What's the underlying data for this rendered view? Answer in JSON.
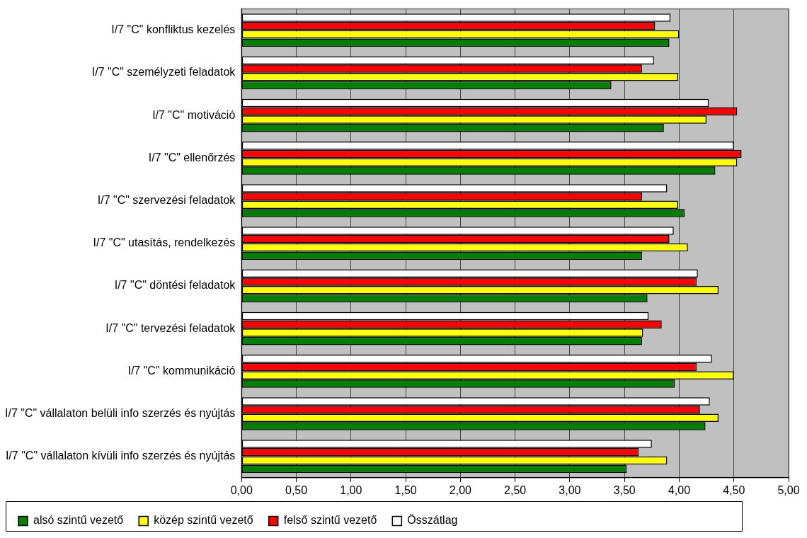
{
  "chart_data": {
    "type": "bar",
    "orientation": "horizontal",
    "categories": [
      "I/7 \"C\" konfliktus kezelés",
      "I/7 \"C\" személyzeti feladatok",
      "I/7 \"C\" motiváció",
      "I/7 \"C\" ellenőrzés",
      "I/7 \"C\" szervezési feladatok",
      "I/7 \"C\" utasítás, rendelkezés",
      "I/7 \"C\" döntési feladatok",
      "I/7 \"C\" tervezési feladatok",
      "I/7 \"C\" kommunikáció",
      "I/7 \"C\" vállalaton belüli info szerzés és nyújtás",
      "I/7 \"C\" vállalaton kívüli info szerzés és nyújtás"
    ],
    "series": [
      {
        "name": "alsó szintű vezető",
        "color": "#008000",
        "values": [
          3.91,
          3.38,
          3.86,
          4.33,
          4.05,
          3.66,
          3.71,
          3.66,
          3.96,
          4.24,
          3.52
        ]
      },
      {
        "name": "közép szintű vezető",
        "color": "#ffff00",
        "values": [
          4.0,
          3.99,
          4.25,
          4.53,
          3.99,
          4.08,
          4.36,
          3.67,
          4.5,
          4.36,
          3.89
        ]
      },
      {
        "name": "felső szintű vezető",
        "color": "#ff0000",
        "values": [
          3.78,
          3.66,
          4.53,
          4.57,
          3.66,
          3.91,
          4.16,
          3.84,
          4.16,
          4.19,
          3.63
        ]
      },
      {
        "name": "Összátlag",
        "color": "#ffffff",
        "values": [
          3.92,
          3.77,
          4.27,
          4.5,
          3.89,
          3.95,
          4.17,
          3.72,
          4.3,
          4.28,
          3.75
        ]
      }
    ],
    "xlim": [
      0,
      5
    ],
    "xticks": [
      {
        "value": 0,
        "label": "0,00"
      },
      {
        "value": 0.5,
        "label": "0,50"
      },
      {
        "value": 1,
        "label": "1,00"
      },
      {
        "value": 1.5,
        "label": "1,50"
      },
      {
        "value": 2,
        "label": "2,00"
      },
      {
        "value": 2.5,
        "label": "2,50"
      },
      {
        "value": 3,
        "label": "3,00"
      },
      {
        "value": 3.5,
        "label": "3,50"
      },
      {
        "value": 4,
        "label": "4,00"
      },
      {
        "value": 4.5,
        "label": "4,50"
      },
      {
        "value": 5,
        "label": "5,00"
      }
    ],
    "grid": "x",
    "legend": "bottom"
  }
}
